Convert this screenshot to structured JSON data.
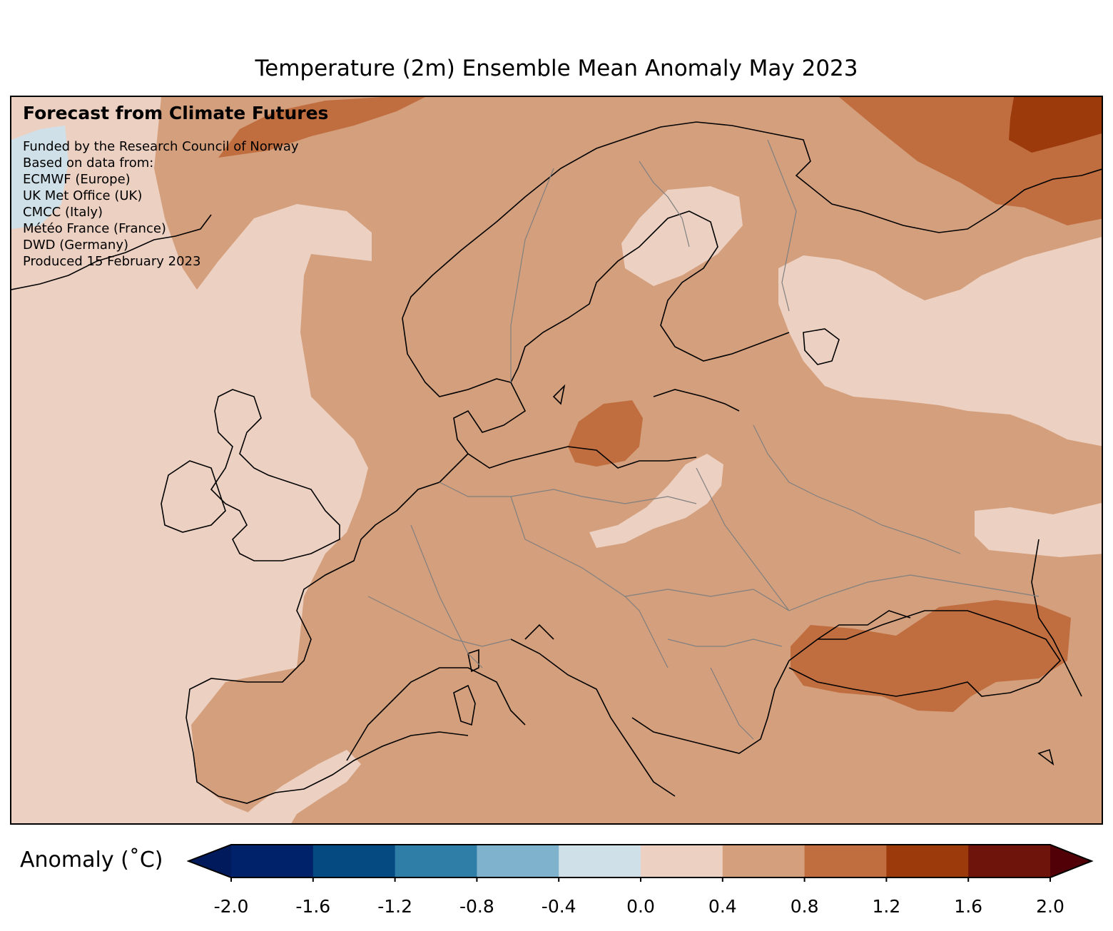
{
  "title": "Temperature (2m) Ensemble Mean Anomaly May 2023",
  "overlay": {
    "heading": "Forecast from Climate Futures",
    "credits": [
      "Funded by the Research Council of Norway",
      "Based on data from:",
      "ECMWF (Europe)",
      "UK Met Office (UK)",
      "CMCC (Italy)",
      "Météo France (France)",
      "DWD (Germany)",
      "Produced 15 February 2023"
    ]
  },
  "legend": {
    "label": "Anomaly (˚C)",
    "ticks": [
      "-2.0",
      "-1.6",
      "-1.2",
      "-0.8",
      "-0.4",
      "0.0",
      "0.4",
      "0.8",
      "1.2",
      "1.6",
      "2.0"
    ],
    "colors": [
      "#001a5c",
      "#00226a",
      "#064a82",
      "#2e7ea8",
      "#7fb2cd",
      "#cfe0e8",
      "#ecd0c2",
      "#d49f7c",
      "#c06e40",
      "#9c3a0c",
      "#6e140a",
      "#520008"
    ],
    "extend_min_color": "#001a5c",
    "extend_max_color": "#520008"
  },
  "map_colors": {
    "band_0_0_4": "#ecd0c2",
    "band_0_4_0_8": "#d49f7c",
    "band_0_8_1_2": "#c06e40",
    "band_1_2_1_6": "#9c3a0c",
    "band_neg_0_4_0": "#cfe0e8",
    "coastline": "#000000",
    "borders": "#808080"
  }
}
